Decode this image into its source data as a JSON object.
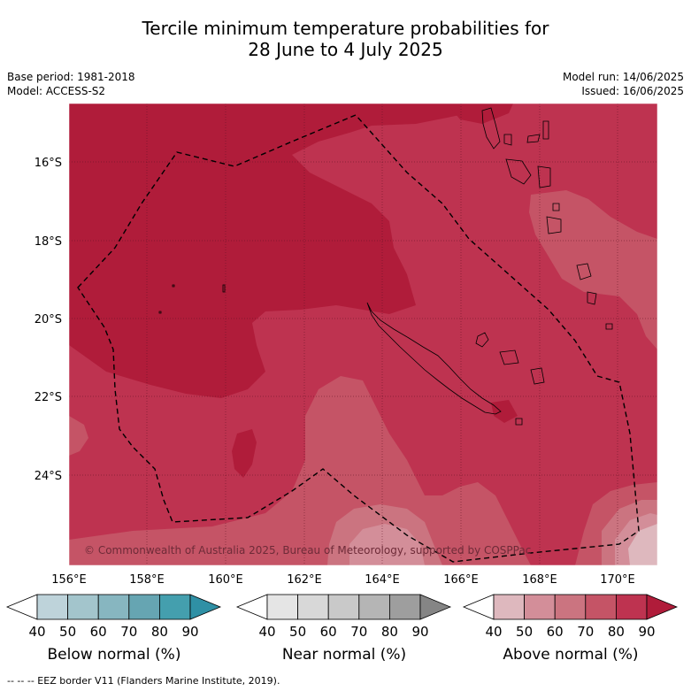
{
  "title": {
    "line1": "Tercile minimum temperature probabilities for",
    "line2": "28 June to 4 July 2025"
  },
  "meta": {
    "base_period": "Base period: 1981-2018",
    "model": "Model: ACCESS-S2",
    "model_run": "Model run: 14/06/2025",
    "issued": "Issued: 16/06/2025"
  },
  "map": {
    "lon_labels": [
      "156°E",
      "158°E",
      "160°E",
      "162°E",
      "164°E",
      "166°E",
      "168°E",
      "170°E"
    ],
    "lat_labels": [
      "16°S",
      "18°S",
      "20°S",
      "22°S",
      "24°S"
    ],
    "copyright": "© Commonwealth of Australia 2025, Bureau of Meteorology, supported by COSPPac",
    "colors": {
      "above_90": "#b01c3a",
      "above_80": "#be3350",
      "above_70": "#c55466",
      "above_60": "#cb7480",
      "above_50": "#d38e99",
      "above_40": "#deb8be"
    }
  },
  "colorbars": [
    {
      "label": "Below normal (%)",
      "ticks": [
        "40",
        "50",
        "60",
        "70",
        "80",
        "90"
      ],
      "colors": [
        "#ffffff",
        "#bed3da",
        "#a3c5cc",
        "#87b6c0",
        "#66a5b2",
        "#449fae",
        "#2f90a5"
      ]
    },
    {
      "label": "Near normal (%)",
      "ticks": [
        "40",
        "50",
        "60",
        "70",
        "80",
        "90"
      ],
      "colors": [
        "#ffffff",
        "#e5e5e5",
        "#d8d8d8",
        "#c9c9c9",
        "#b5b5b5",
        "#9e9e9e",
        "#858585"
      ]
    },
    {
      "label": "Above normal (%)",
      "ticks": [
        "40",
        "50",
        "60",
        "70",
        "80",
        "90"
      ],
      "colors": [
        "#ffffff",
        "#deb8be",
        "#d38e99",
        "#cb7480",
        "#c55466",
        "#be3350",
        "#b01c3a"
      ]
    }
  ],
  "footnote": "--  --  -- EEZ border V11 (Flanders Marine Institute, 2019)."
}
